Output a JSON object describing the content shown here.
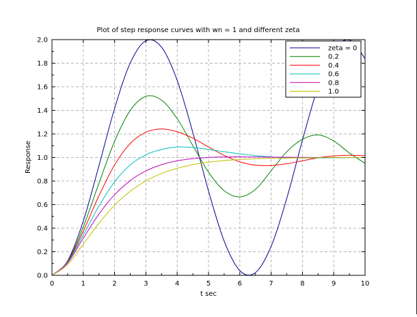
{
  "chart_data": {
    "type": "line",
    "title": "Plot of step response curves with wn = 1 and different zeta",
    "xlabel": "t sec",
    "ylabel": "Response",
    "xlim": [
      0,
      10
    ],
    "ylim": [
      0,
      2.0
    ],
    "xticks": [
      0,
      1,
      2,
      3,
      4,
      5,
      6,
      7,
      8,
      9,
      10
    ],
    "yticks": [
      0.0,
      0.2,
      0.4,
      0.6,
      0.8,
      1.0,
      1.2,
      1.4,
      1.6,
      1.8,
      2.0
    ],
    "ytick_labels": [
      "0.0",
      "0.2",
      "0.4",
      "0.6",
      "0.8",
      "1.0",
      "1.2",
      "1.4",
      "1.6",
      "1.8",
      "2.0"
    ],
    "grid": true,
    "legend_position": "top-right",
    "x": [
      0,
      0.5,
      1,
      1.5,
      2,
      2.5,
      3,
      3.5,
      4,
      4.5,
      5,
      5.5,
      6,
      6.5,
      7,
      7.5,
      8,
      8.5,
      9,
      9.5,
      10
    ],
    "series": [
      {
        "name": "zeta = 0",
        "color": "#00008b",
        "values": [
          0.0,
          0.122,
          0.46,
          0.929,
          1.416,
          1.801,
          1.99,
          1.936,
          1.654,
          1.211,
          0.716,
          0.291,
          0.04,
          0.023,
          0.246,
          0.653,
          1.146,
          1.602,
          1.911,
          1.997,
          1.839
        ]
      },
      {
        "name": "0.2",
        "color": "#008000",
        "values": [
          0.0,
          0.117,
          0.411,
          0.781,
          1.137,
          1.399,
          1.519,
          1.487,
          1.329,
          1.101,
          0.876,
          0.718,
          0.666,
          0.729,
          0.887,
          1.049,
          1.154,
          1.191,
          1.14,
          1.038,
          0.95
        ]
      },
      {
        "name": "0.4",
        "color": "#ff0000",
        "values": [
          0.0,
          0.113,
          0.375,
          0.674,
          0.937,
          1.118,
          1.214,
          1.242,
          1.218,
          1.164,
          1.089,
          1.018,
          0.963,
          0.935,
          0.932,
          0.947,
          0.972,
          0.997,
          1.013,
          1.019,
          1.015
        ]
      },
      {
        "name": "0.6",
        "color": "#00bfbf",
        "values": [
          0.0,
          0.109,
          0.343,
          0.588,
          0.793,
          0.937,
          1.023,
          1.068,
          1.089,
          1.085,
          1.068,
          1.049,
          1.031,
          1.016,
          1.005,
          0.999,
          0.996,
          0.996,
          0.997,
          0.999,
          1.0
        ]
      },
      {
        "name": "0.8",
        "color": "#bf00bf",
        "values": [
          0.0,
          0.104,
          0.315,
          0.52,
          0.683,
          0.804,
          0.886,
          0.939,
          0.972,
          0.99,
          1.0,
          1.004,
          1.005,
          1.004,
          1.003,
          1.002,
          1.001,
          1.0,
          1.0,
          1.0,
          1.0
        ]
      },
      {
        "name": "1.0",
        "color": "#bfbf00",
        "values": [
          0.0,
          0.09,
          0.264,
          0.442,
          0.594,
          0.713,
          0.801,
          0.864,
          0.908,
          0.939,
          0.96,
          0.973,
          0.983,
          0.989,
          0.993,
          0.995,
          0.997,
          0.998,
          0.999,
          0.999,
          1.0
        ]
      }
    ]
  }
}
